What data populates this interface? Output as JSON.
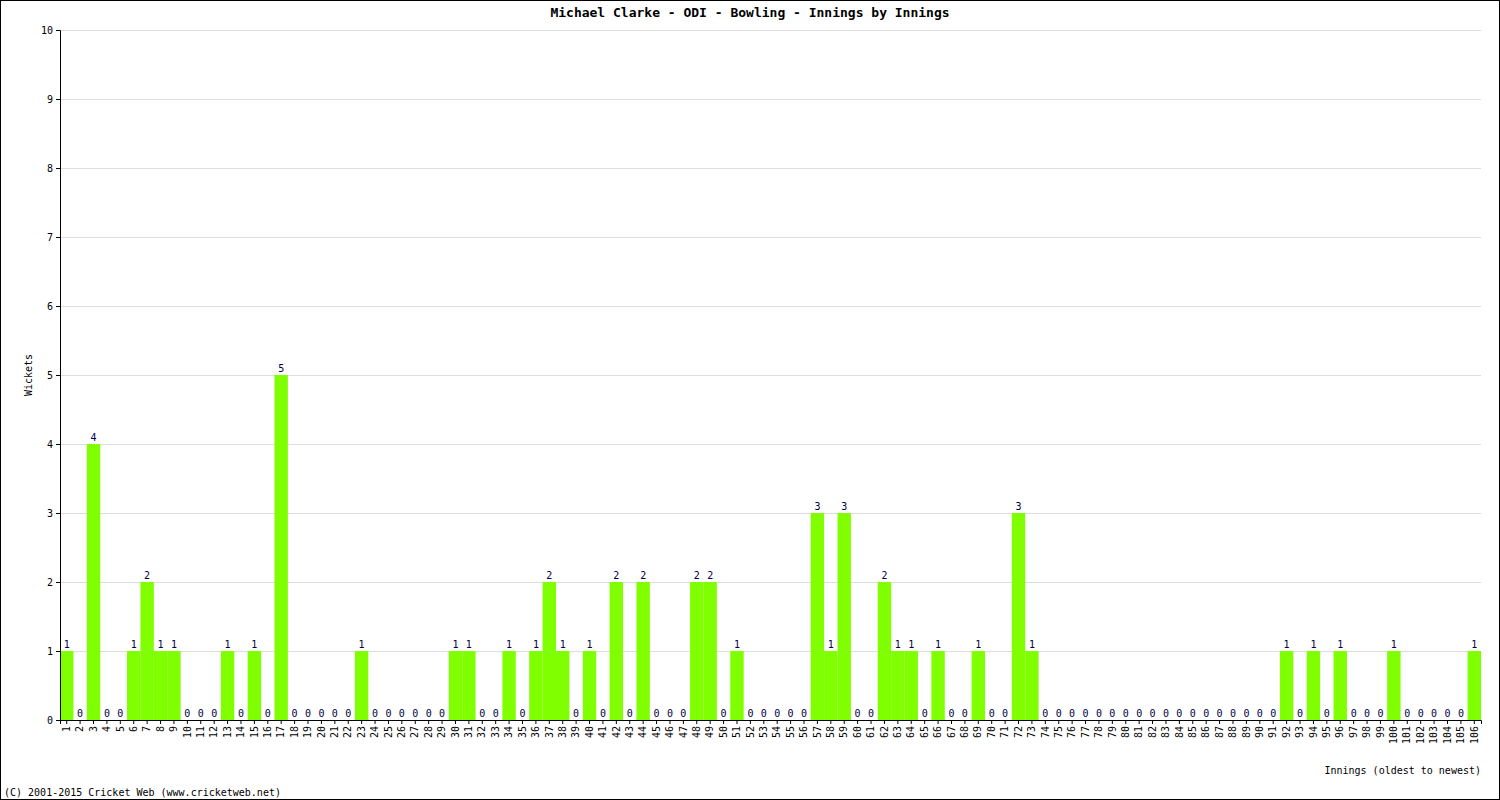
{
  "chart_data": {
    "type": "bar",
    "title": "Michael Clarke - ODI - Bowling - Innings by Innings",
    "y_label": "Wickets",
    "x_label": "Innings (oldest to newest)",
    "annotations": [
      "(C) 2001-2015 Cricket Web (www.cricketweb.net)"
    ],
    "categories": [
      "1",
      "2",
      "3",
      "4",
      "5",
      "6",
      "7",
      "8",
      "9",
      "10",
      "11",
      "12",
      "13",
      "14",
      "15",
      "16",
      "17",
      "18",
      "19",
      "20",
      "21",
      "22",
      "23",
      "24",
      "25",
      "26",
      "27",
      "28",
      "29",
      "30",
      "31",
      "32",
      "33",
      "34",
      "35",
      "36",
      "37",
      "38",
      "39",
      "40",
      "41",
      "42",
      "43",
      "44",
      "45",
      "46",
      "47",
      "48",
      "49",
      "50",
      "51",
      "52",
      "53",
      "54",
      "55",
      "56",
      "57",
      "58",
      "59",
      "60",
      "61",
      "62",
      "63",
      "64",
      "65",
      "66",
      "67",
      "68",
      "69",
      "70",
      "71",
      "72",
      "73",
      "74",
      "75",
      "76",
      "77",
      "78",
      "79",
      "80",
      "81",
      "82",
      "83",
      "84",
      "85",
      "86",
      "87",
      "88",
      "89",
      "90",
      "91",
      "92",
      "93",
      "94",
      "95",
      "96",
      "97",
      "98",
      "99",
      "100",
      "101",
      "102",
      "103",
      "104",
      "105",
      "106"
    ],
    "values": [
      1,
      0,
      4,
      0,
      0,
      1,
      2,
      1,
      1,
      0,
      0,
      0,
      1,
      0,
      1,
      0,
      5,
      0,
      0,
      0,
      0,
      0,
      1,
      0,
      0,
      0,
      0,
      0,
      0,
      1,
      1,
      0,
      0,
      1,
      0,
      1,
      2,
      1,
      0,
      1,
      0,
      2,
      0,
      2,
      0,
      0,
      0,
      2,
      2,
      0,
      1,
      0,
      0,
      0,
      0,
      0,
      3,
      1,
      3,
      0,
      0,
      2,
      1,
      1,
      0,
      1,
      0,
      0,
      1,
      0,
      0,
      3,
      1,
      0,
      0,
      0,
      0,
      0,
      0,
      0,
      0,
      0,
      0,
      0,
      0,
      0,
      0,
      0,
      0,
      0,
      0,
      1,
      0,
      1,
      0,
      1,
      0,
      0,
      0,
      1,
      0,
      0,
      0,
      0,
      0,
      1
    ],
    "color": "#7fff00",
    "ylim": [
      0,
      10
    ],
    "yticks": [
      0,
      1,
      2,
      3,
      4,
      5,
      6,
      7,
      8,
      9,
      10
    ],
    "grid": true,
    "data_labels": true
  }
}
